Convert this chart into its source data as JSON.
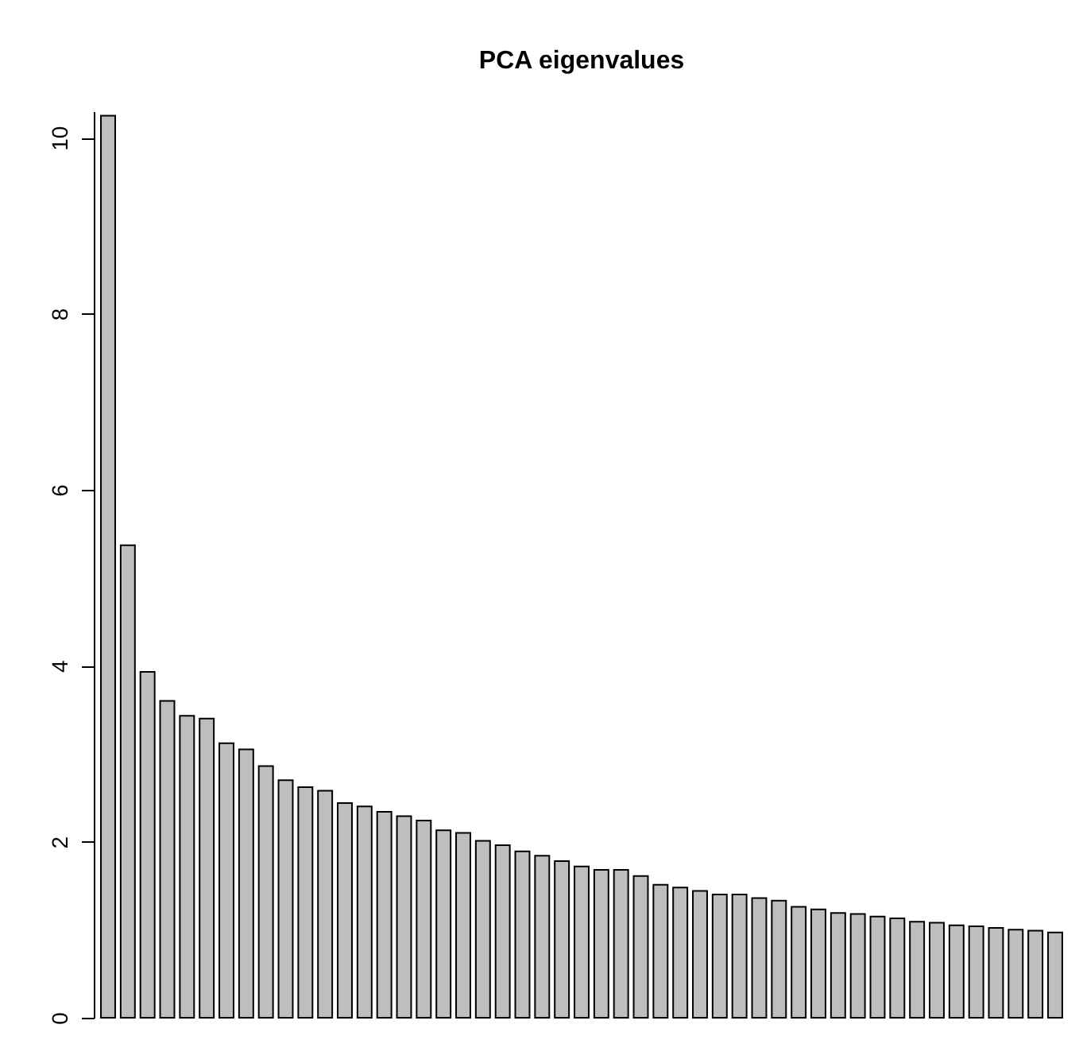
{
  "chart_data": {
    "type": "bar",
    "title": "PCA eigenvalues",
    "categories": [
      null,
      null,
      null,
      null,
      null,
      null,
      null,
      null,
      null,
      null,
      null,
      null,
      null,
      null,
      null,
      null,
      null,
      null,
      null,
      null,
      null,
      null,
      null,
      null,
      null,
      null,
      null,
      null,
      null,
      null,
      null,
      null,
      null,
      null,
      null,
      null,
      null,
      null,
      null,
      null,
      null,
      null,
      null,
      null,
      null,
      null,
      null,
      null,
      null
    ],
    "values": [
      10.25,
      5.37,
      3.93,
      3.6,
      3.43,
      3.4,
      3.12,
      3.05,
      2.86,
      2.7,
      2.62,
      2.58,
      2.44,
      2.4,
      2.34,
      2.29,
      2.24,
      2.13,
      2.1,
      2.01,
      1.96,
      1.89,
      1.84,
      1.78,
      1.72,
      1.68,
      1.68,
      1.61,
      1.51,
      1.48,
      1.44,
      1.4,
      1.4,
      1.36,
      1.33,
      1.26,
      1.23,
      1.19,
      1.18,
      1.15,
      1.13,
      1.09,
      1.08,
      1.05,
      1.04,
      1.02,
      1.0,
      0.99,
      0.97
    ],
    "color": "#bebebe",
    "ylim": [
      0,
      10.3
    ],
    "yticks": [
      0,
      2,
      4,
      6,
      8,
      10
    ],
    "tick_labels": "y",
    "grid": false
  }
}
